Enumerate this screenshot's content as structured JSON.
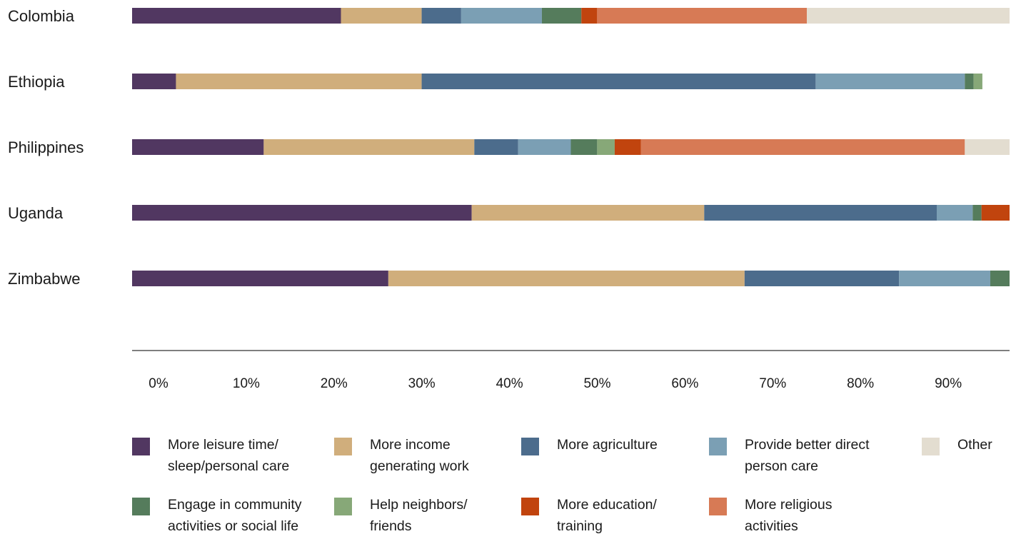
{
  "chart_data": {
    "type": "bar",
    "orientation": "horizontal",
    "stacked": true,
    "categories": [
      "Colombia",
      "Ethiopia",
      "Philippines",
      "Uganda",
      "Zimbabwe"
    ],
    "xlim": [
      0,
      100
    ],
    "xticks": [
      "0%",
      "10%",
      "20%",
      "30%",
      "40%",
      "50%",
      "60%",
      "70%",
      "80%",
      "90%",
      "100%"
    ],
    "grid": false,
    "legend_position": "bottom",
    "series": [
      {
        "name": "More leisure time/\nsleep/personal care",
        "color": "#513761",
        "values": [
          23.8,
          5.0,
          15.0,
          38.7,
          29.2
        ]
      },
      {
        "name": "More income\ngenerating work",
        "color": "#d0ae7c",
        "values": [
          9.2,
          28.0,
          24.0,
          26.5,
          40.6
        ]
      },
      {
        "name": "More agriculture",
        "color": "#4c6c8c",
        "values": [
          4.5,
          44.9,
          5.0,
          26.5,
          17.6
        ]
      },
      {
        "name": "Provide better direct\nperson care",
        "color": "#7b9fb4",
        "values": [
          9.2,
          17.0,
          6.0,
          4.1,
          10.4
        ]
      },
      {
        "name": "Engage in community\nactivities or social life",
        "color": "#557c5c",
        "values": [
          4.5,
          1.0,
          3.0,
          1.0,
          2.2
        ]
      },
      {
        "name": "Help neighbors/\nfriends",
        "color": "#87a878",
        "values": [
          0,
          1.0,
          2.0,
          0,
          0
        ]
      },
      {
        "name": "More education/\ntraining",
        "color": "#c1440e",
        "values": [
          1.8,
          0,
          3.0,
          3.2,
          0
        ]
      },
      {
        "name": "More religious\nactivities",
        "color": "#d77a55",
        "values": [
          23.9,
          0,
          36.9,
          0,
          0
        ]
      },
      {
        "name": "Other",
        "color": "#e3ddd0",
        "values": [
          23.1,
          0,
          5.1,
          0,
          0
        ]
      }
    ]
  }
}
